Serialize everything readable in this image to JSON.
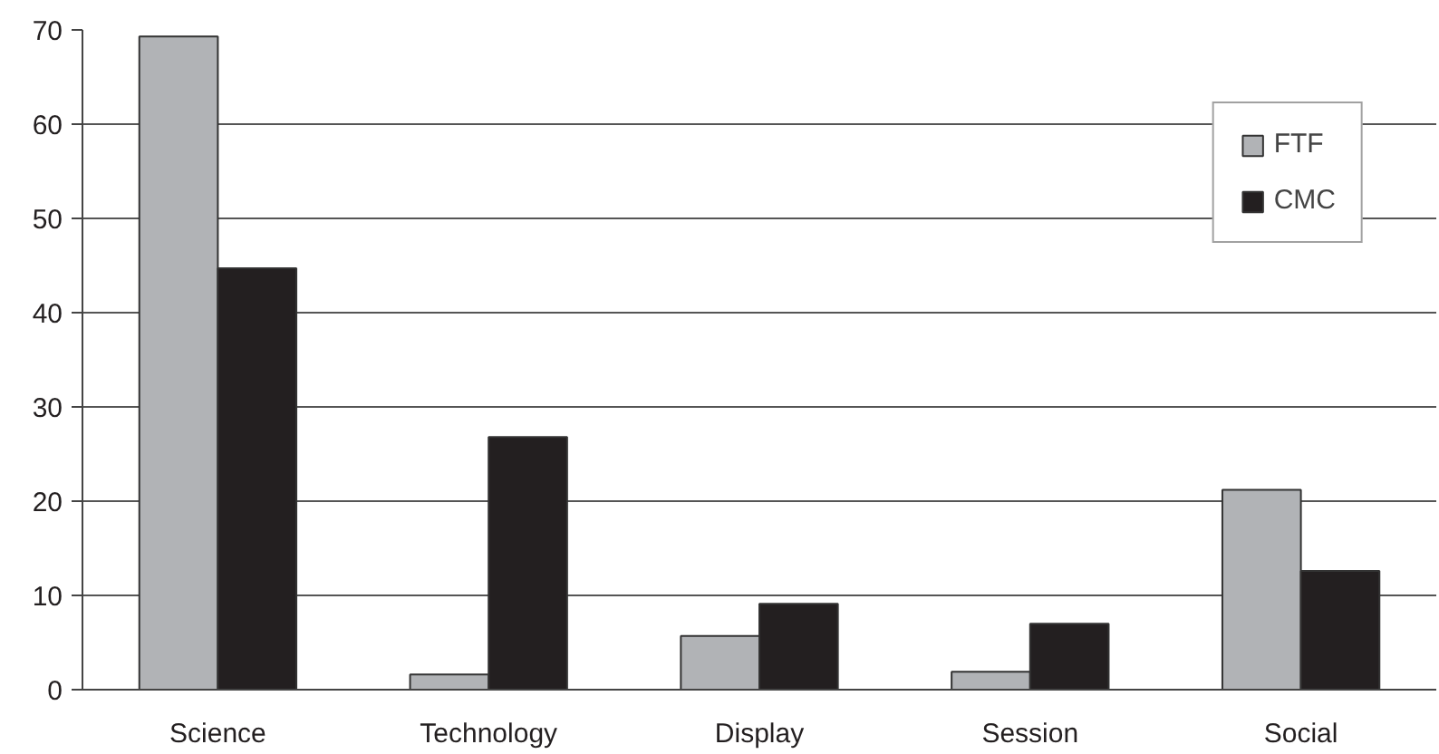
{
  "chart_data": {
    "type": "bar",
    "categories": [
      "Science",
      "Technology",
      "Display",
      "Session",
      "Social"
    ],
    "series": [
      {
        "name": "FTF",
        "color": "#b1b3b6",
        "values": [
          69.3,
          1.6,
          5.7,
          1.9,
          21.2
        ]
      },
      {
        "name": "CMC",
        "color": "#231f20",
        "values": [
          44.7,
          26.8,
          9.1,
          7.0,
          12.6
        ]
      }
    ],
    "ylim": [
      0,
      70
    ],
    "yticks": [
      0,
      10,
      20,
      30,
      40,
      50,
      60,
      70
    ],
    "grid": "y",
    "legend": "top right"
  }
}
